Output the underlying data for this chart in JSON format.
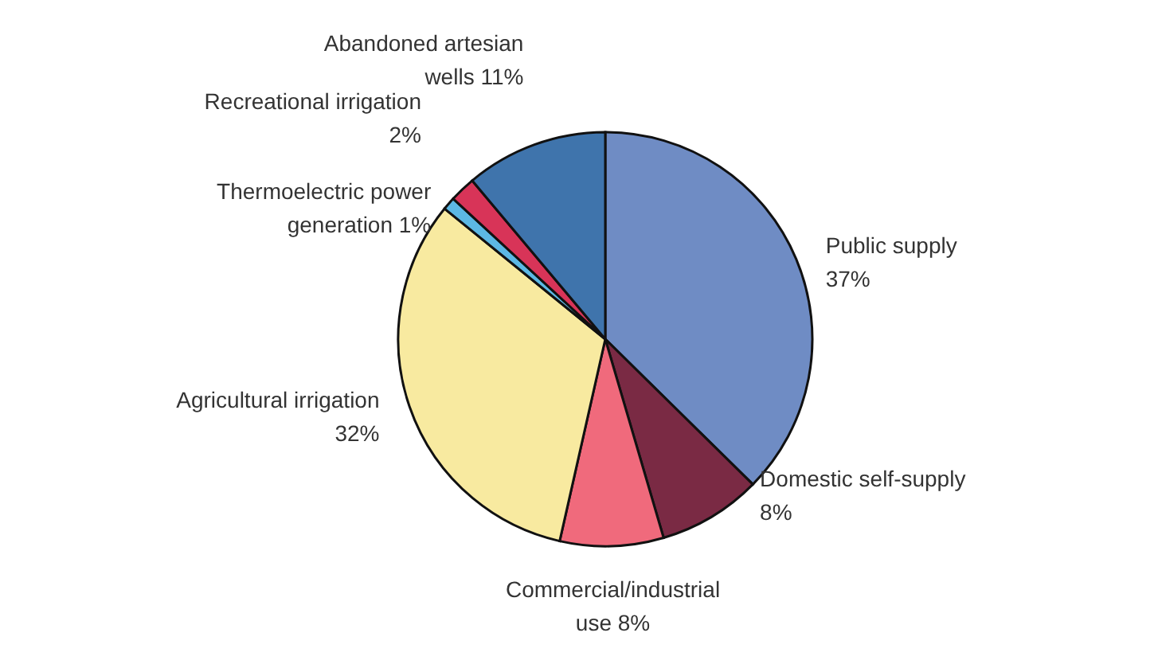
{
  "chart_data": {
    "type": "pie",
    "categories": [
      "Public supply",
      "Domestic self-supply",
      "Commercial/industrial use",
      "Agricultural irrigation",
      "Thermoelectric power generation",
      "Recreational irrigation",
      "Abandoned artesian wells"
    ],
    "values": [
      37,
      8,
      8,
      32,
      1,
      2,
      11
    ],
    "value_labels": [
      "37%",
      "8%",
      "8%",
      "32%",
      "1%",
      "2%",
      "11%"
    ],
    "colors": [
      "#6f8cc4",
      "#7a2a44",
      "#f06a7c",
      "#f8eaa0",
      "#5cb8e4",
      "#d83458",
      "#3f74ac"
    ],
    "legend": false
  }
}
